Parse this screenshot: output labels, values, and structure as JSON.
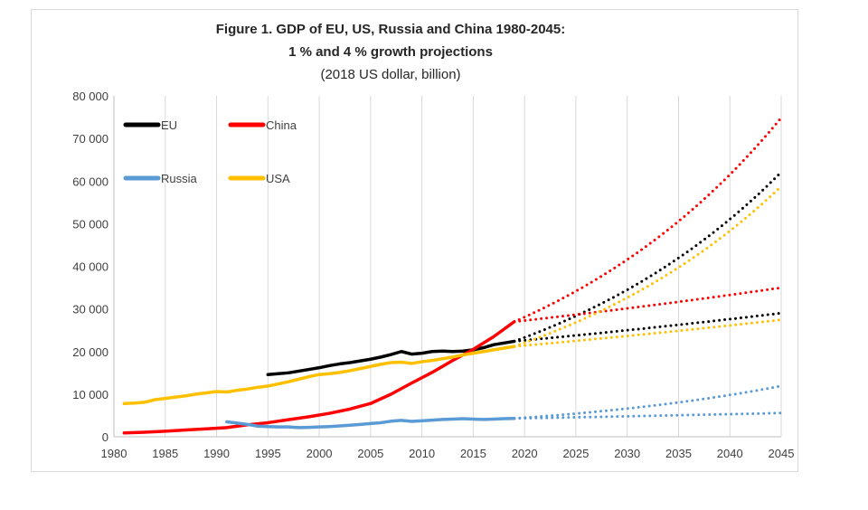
{
  "chart_data": {
    "type": "line",
    "title": "Figure 1. GDP of EU, US, Russia and China 1980-2045:",
    "subtitle": "1 % and 4 % growth projections",
    "subtitle2": "(2018 US dollar, billion)",
    "xlim": [
      1980,
      2045
    ],
    "ylim": [
      0,
      80000
    ],
    "x_ticks": [
      "1980",
      "1985",
      "1990",
      "1995",
      "2000",
      "2005",
      "2010",
      "2015",
      "2020",
      "2025",
      "2030",
      "2035",
      "2040",
      "2045"
    ],
    "y_ticks": [
      "0",
      "10 000",
      "20 000",
      "30 000",
      "40 000",
      "50 000",
      "60 000",
      "70 000",
      "80 000"
    ],
    "grid": "vertical",
    "legend": [
      {
        "label": "EU",
        "color": "#000000"
      },
      {
        "label": "China",
        "color": "#ff0000"
      },
      {
        "label": "Russia",
        "color": "#5b9bd5"
      },
      {
        "label": "USA",
        "color": "#ffc000"
      }
    ],
    "series": [
      {
        "name": "EU",
        "color": "#000000",
        "style": "solid",
        "x": [
          1995,
          1996,
          1997,
          1998,
          1999,
          2000,
          2001,
          2002,
          2003,
          2004,
          2005,
          2006,
          2007,
          2008,
          2009,
          2010,
          2011,
          2012,
          2013,
          2014,
          2015,
          2016,
          2017,
          2018,
          2019
        ],
        "y": [
          14600,
          14800,
          15000,
          15400,
          15800,
          16200,
          16700,
          17100,
          17400,
          17800,
          18200,
          18700,
          19300,
          20000,
          19400,
          19600,
          20000,
          20100,
          20000,
          20100,
          20400,
          20900,
          21600,
          22000,
          22400
        ]
      },
      {
        "name": "China",
        "color": "#ff0000",
        "style": "solid",
        "x": [
          1981,
          1983,
          1985,
          1987,
          1989,
          1991,
          1993,
          1995,
          1997,
          1999,
          2001,
          2003,
          2005,
          2007,
          2009,
          2011,
          2013,
          2015,
          2017,
          2019
        ],
        "y": [
          900,
          1050,
          1300,
          1600,
          1850,
          2150,
          2800,
          3300,
          4000,
          4700,
          5500,
          6500,
          7800,
          10000,
          12600,
          15100,
          17900,
          20500,
          23500,
          27000
        ]
      },
      {
        "name": "Russia",
        "color": "#5b9bd5",
        "style": "solid",
        "x": [
          1991,
          1992,
          1993,
          1994,
          1995,
          1996,
          1997,
          1998,
          1999,
          2000,
          2001,
          2002,
          2003,
          2004,
          2005,
          2006,
          2007,
          2008,
          2009,
          2010,
          2011,
          2012,
          2013,
          2014,
          2015,
          2016,
          2017,
          2018,
          2019
        ],
        "y": [
          3500,
          3200,
          2900,
          2500,
          2400,
          2300,
          2300,
          2150,
          2200,
          2300,
          2400,
          2550,
          2700,
          2900,
          3100,
          3300,
          3650,
          3850,
          3600,
          3750,
          3900,
          4050,
          4150,
          4250,
          4150,
          4050,
          4150,
          4250,
          4300
        ]
      },
      {
        "name": "USA",
        "color": "#ffc000",
        "style": "solid",
        "x": [
          1981,
          1982,
          1983,
          1984,
          1985,
          1986,
          1987,
          1988,
          1989,
          1990,
          1991,
          1992,
          1993,
          1994,
          1995,
          1996,
          1997,
          1998,
          1999,
          2000,
          2001,
          2002,
          2003,
          2004,
          2005,
          2006,
          2007,
          2008,
          2009,
          2010,
          2011,
          2012,
          2013,
          2014,
          2015,
          2016,
          2017,
          2018,
          2019
        ],
        "y": [
          7800,
          7900,
          8100,
          8700,
          9000,
          9300,
          9600,
          10000,
          10300,
          10600,
          10500,
          10900,
          11200,
          11600,
          11900,
          12400,
          12900,
          13500,
          14100,
          14600,
          14800,
          15100,
          15500,
          16000,
          16500,
          17000,
          17400,
          17500,
          17200,
          17600,
          17900,
          18300,
          18700,
          19200,
          19600,
          20000,
          20400,
          20800,
          21200
        ]
      },
      {
        "name": "EU 4%",
        "color": "#000000",
        "style": "dotted",
        "x": [
          2019,
          2045
        ],
        "y": [
          22400,
          61700
        ],
        "growth": 0.04
      },
      {
        "name": "EU 1%",
        "color": "#000000",
        "style": "dotted",
        "x": [
          2019,
          2045
        ],
        "y": [
          22400,
          29000
        ],
        "growth": 0.01
      },
      {
        "name": "China 4%",
        "color": "#ff0000",
        "style": "dotted",
        "x": [
          2019,
          2045
        ],
        "y": [
          27000,
          74500
        ],
        "growth": 0.04
      },
      {
        "name": "China 1%",
        "color": "#ff0000",
        "style": "dotted",
        "x": [
          2019,
          2045
        ],
        "y": [
          27000,
          34900
        ],
        "growth": 0.01
      },
      {
        "name": "USA 4%",
        "color": "#ffc000",
        "style": "dotted",
        "x": [
          2019,
          2045
        ],
        "y": [
          21200,
          58500
        ],
        "growth": 0.04
      },
      {
        "name": "USA 1%",
        "color": "#ffc000",
        "style": "dotted",
        "x": [
          2019,
          2045
        ],
        "y": [
          21200,
          27400
        ],
        "growth": 0.01
      },
      {
        "name": "Russia 4%",
        "color": "#5b9bd5",
        "style": "dotted",
        "x": [
          2019,
          2045
        ],
        "y": [
          4300,
          11900
        ],
        "growth": 0.04
      },
      {
        "name": "Russia 1%",
        "color": "#5b9bd5",
        "style": "dotted",
        "x": [
          2019,
          2045
        ],
        "y": [
          4300,
          5600
        ],
        "growth": 0.01
      }
    ]
  }
}
